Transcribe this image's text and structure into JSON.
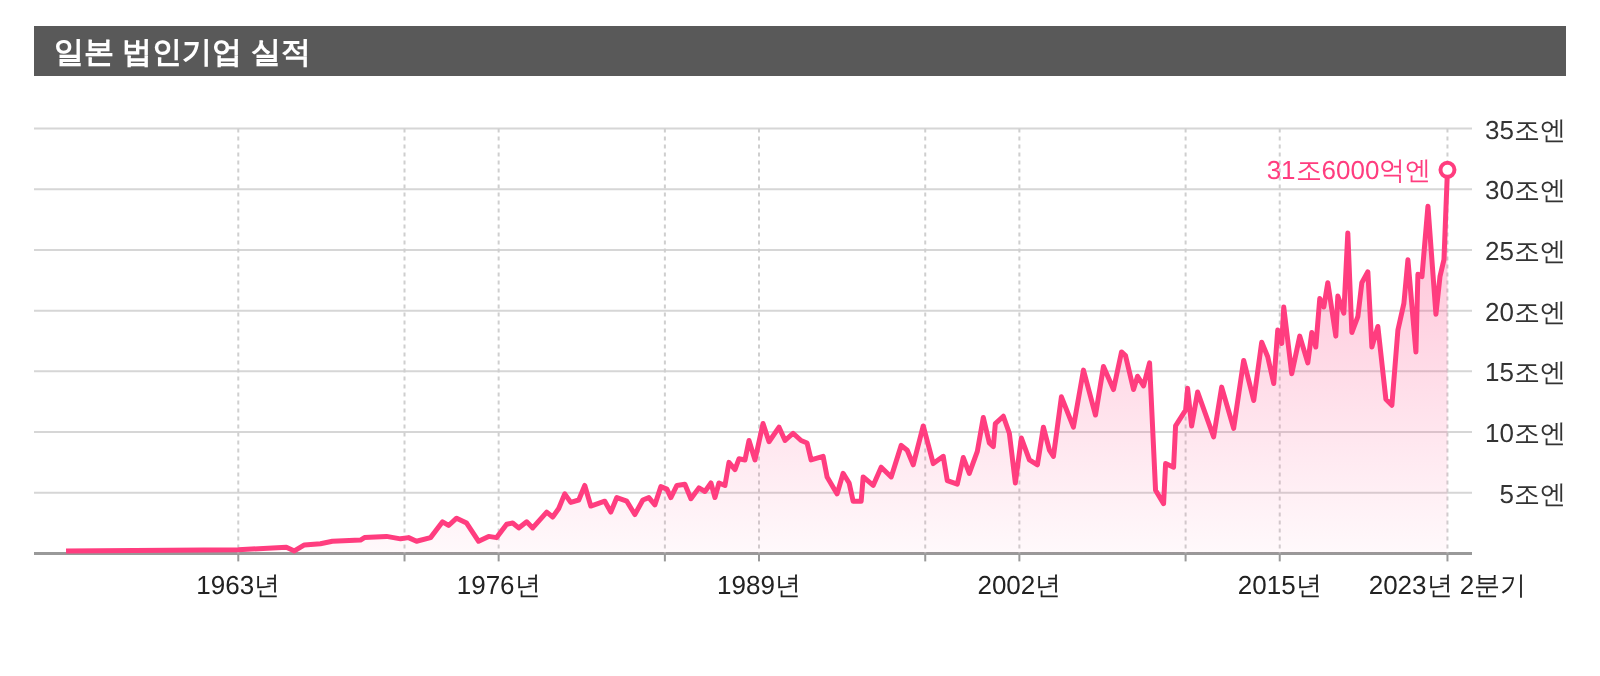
{
  "chart_data": {
    "type": "area",
    "title": "일본 법인기업 실적",
    "color": "#ff3d7f",
    "x": [
      1954.4,
      1963,
      1965.4,
      1965.8,
      1966.3,
      1967.1,
      1967.7,
      1969.1,
      1969.3,
      1970.4,
      1971.1,
      1971.5,
      1971.9,
      1972.6,
      1973.2,
      1973.5,
      1973.9,
      1974.4,
      1975.0,
      1975.5,
      1975.9,
      1976.4,
      1976.7,
      1977.0,
      1977.4,
      1977.7,
      1978.4,
      1978.7,
      1979.0,
      1979.3,
      1979.6,
      1980.0,
      1980.3,
      1980.6,
      1981.3,
      1981.6,
      1981.9,
      1982.4,
      1982.8,
      1983.2,
      1983.5,
      1983.8,
      1984.1,
      1984.4,
      1984.6,
      1984.9,
      1985.3,
      1985.6,
      1986.0,
      1986.3,
      1986.6,
      1986.8,
      1987.0,
      1987.3,
      1987.5,
      1987.8,
      1988.0,
      1988.3,
      1988.5,
      1988.8,
      1989.2,
      1989.5,
      1990.0,
      1990.3,
      1990.7,
      1991.1,
      1991.4,
      1991.6,
      1992.2,
      1992.4,
      1992.9,
      1993.2,
      1993.5,
      1993.7,
      1994.1,
      1994.2,
      1994.7,
      1995.1,
      1995.6,
      1996.1,
      1996.4,
      1996.7,
      1997.2,
      1997.7,
      1998.2,
      1998.4,
      1998.9,
      1999.2,
      1999.5,
      1999.9,
      2000.2,
      2000.5,
      2000.7,
      2000.8,
      2001.2,
      2001.5,
      2001.8,
      2002.1,
      2002.5,
      2002.9,
      2003.2,
      2003.5,
      2003.7,
      2004.1,
      2004.7,
      2005.2,
      2005.8,
      2006.2,
      2006.7,
      2007.1,
      2007.3,
      2007.7,
      2007.9,
      2008.2,
      2008.5,
      2008.8,
      2009.2,
      2009.3,
      2009.7,
      2009.8,
      2010.3,
      2010.4,
      2010.6,
      2010.9,
      2011.7,
      2012.1,
      2012.7,
      2013.2,
      2013.7,
      2014.1,
      2014.4,
      2014.7,
      2014.9,
      2015.1,
      2015.2,
      2015.6,
      2016.0,
      2016.4,
      2016.6,
      2016.8,
      2017.0,
      2017.2,
      2017.4,
      2017.8,
      2017.9,
      2018.2,
      2018.4,
      2018.6,
      2018.9,
      2019.1,
      2019.4,
      2019.6,
      2019.9,
      2020.3,
      2020.6,
      2020.9,
      2021.2,
      2021.4,
      2021.8,
      2021.9,
      2022.1,
      2022.4,
      2022.8,
      2023.0,
      2023.2,
      2023.375
    ],
    "values": [
      0.2,
      0.3,
      0.5,
      0.2,
      0.7,
      0.8,
      1.0,
      1.1,
      1.3,
      1.4,
      1.2,
      1.3,
      1.0,
      1.3,
      2.6,
      2.3,
      2.9,
      2.5,
      1.0,
      1.4,
      1.3,
      2.4,
      2.5,
      2.1,
      2.6,
      2.1,
      3.4,
      3.0,
      3.7,
      4.9,
      4.2,
      4.4,
      5.6,
      3.9,
      4.3,
      3.4,
      4.6,
      4.3,
      3.2,
      4.4,
      4.6,
      4.0,
      5.5,
      5.3,
      4.6,
      5.6,
      5.7,
      4.5,
      5.4,
      5.1,
      5.8,
      4.6,
      5.8,
      5.6,
      7.5,
      6.9,
      7.8,
      7.7,
      9.3,
      7.7,
      10.7,
      9.2,
      10.4,
      9.3,
      9.9,
      9.3,
      9.1,
      7.7,
      8.0,
      6.3,
      4.9,
      6.6,
      5.8,
      4.3,
      4.3,
      6.3,
      5.6,
      7.1,
      6.3,
      8.9,
      8.5,
      7.3,
      10.5,
      7.4,
      8.0,
      6.0,
      5.7,
      7.9,
      6.6,
      8.4,
      11.2,
      9.1,
      8.8,
      10.7,
      11.3,
      9.9,
      5.8,
      9.5,
      7.7,
      7.3,
      10.4,
      8.5,
      8.0,
      12.9,
      10.4,
      15.1,
      11.4,
      15.4,
      13.5,
      16.6,
      16.3,
      13.5,
      14.6,
      13.8,
      15.7,
      5.2,
      4.1,
      7.4,
      7.1,
      10.5,
      11.8,
      13.6,
      10.5,
      13.3,
      9.6,
      13.7,
      10.3,
      15.9,
      12.6,
      17.4,
      16.2,
      14.0,
      18.4,
      17.3,
      20.3,
      14.8,
      17.9,
      15.7,
      18.2,
      17.0,
      21.0,
      20.3,
      22.3,
      17.9,
      21.2,
      19.8,
      26.4,
      18.2,
      19.5,
      22.3,
      23.2,
      17.0,
      18.7,
      12.7,
      12.2,
      18.4,
      20.6,
      24.2,
      16.6,
      23.0,
      22.8,
      28.6,
      19.7,
      22.8,
      24.2,
      31.6
    ],
    "xlim": [
      1952.8,
      2024.6
    ],
    "ylim": [
      0,
      35
    ],
    "xticks": [
      {
        "value": 1963,
        "label": "1963년"
      },
      {
        "value": 1971.3,
        "label": null
      },
      {
        "value": 1976,
        "label": "1976년"
      },
      {
        "value": 1984.3,
        "label": null
      },
      {
        "value": 1989,
        "label": "1989년"
      },
      {
        "value": 1997.3,
        "label": null
      },
      {
        "value": 2002,
        "label": "2002년"
      },
      {
        "value": 2010.3,
        "label": null
      },
      {
        "value": 2015,
        "label": "2015년"
      },
      {
        "value": 2023.375,
        "label": "2023년 2분기"
      }
    ],
    "yticks": [
      {
        "value": 0,
        "label": null
      },
      {
        "value": 5,
        "label": "5조엔"
      },
      {
        "value": 10,
        "label": "10조엔"
      },
      {
        "value": 15,
        "label": "15조엔"
      },
      {
        "value": 20,
        "label": "20조엔"
      },
      {
        "value": 25,
        "label": "25조엔"
      },
      {
        "value": 30,
        "label": "30조엔"
      },
      {
        "value": 35,
        "label": "35조엔"
      }
    ],
    "grid": true,
    "annotations": [
      {
        "text": "31조6000억엔",
        "x": 2023.375,
        "y": 31.6
      }
    ]
  }
}
